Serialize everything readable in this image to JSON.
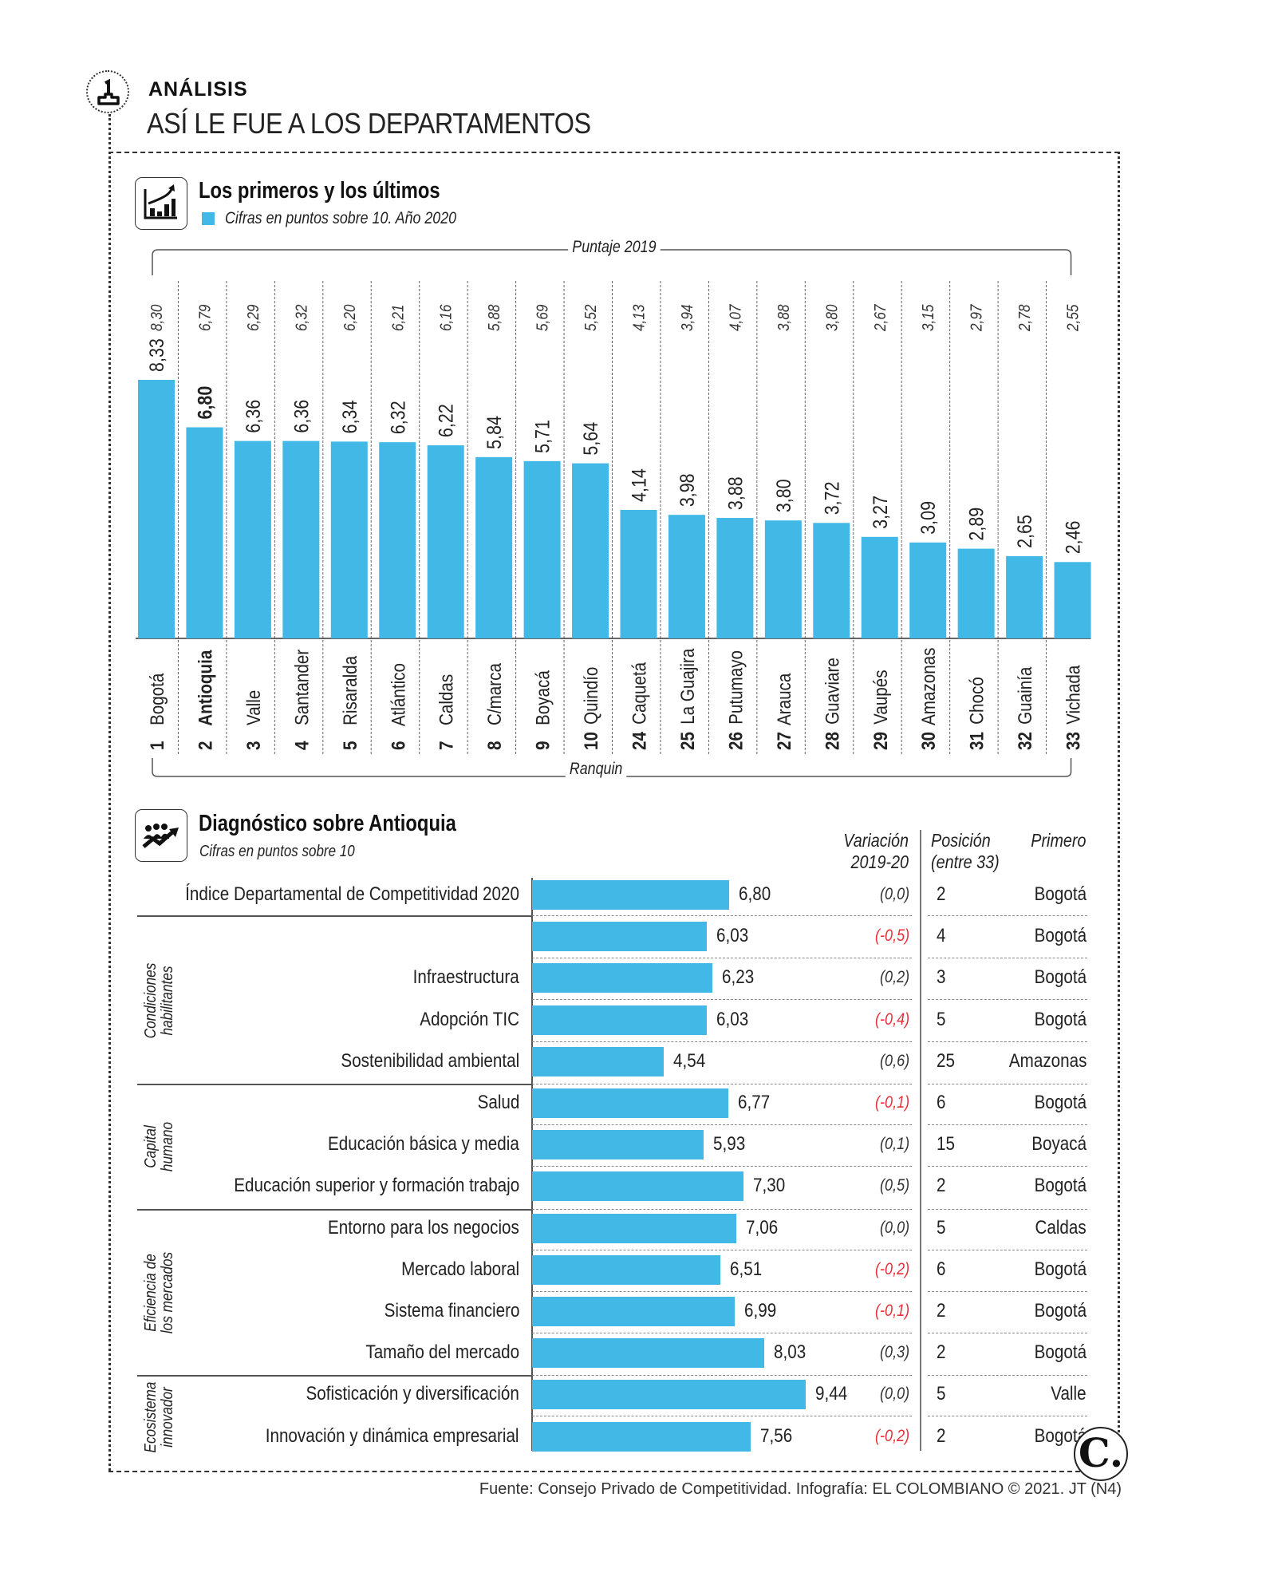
{
  "header": {
    "kicker": "ANÁLISIS",
    "title": "ASÍ LE FUE A LOS DEPARTAMENTOS",
    "icon": "podium-number-one-icon"
  },
  "section1": {
    "title": "Los primeros y los últimos",
    "legend": "Cifras en puntos sobre 10. Año 2020",
    "icon": "bar-chart-trend-icon",
    "top_bracket": "Puntaje 2019",
    "bottom_bracket": "Ranquin"
  },
  "section2": {
    "title": "Diagnóstico sobre Antioquia",
    "subtitle": "Cifras en puntos sobre 10",
    "icon": "people-growth-icon",
    "col_variation": [
      "Variación",
      "2019-20"
    ],
    "col_position": [
      "Posición",
      "(entre 33)"
    ],
    "col_first": "Primero"
  },
  "chart_data": [
    {
      "type": "bar",
      "title": "Los primeros y los últimos",
      "subtitle": "Cifras en puntos sobre 10. Año 2020",
      "categories": [
        "Bogotá",
        "Antioquia",
        "Valle",
        "Santander",
        "Risaralda",
        "Atlántico",
        "Caldas",
        "C/marca",
        "Boyacá",
        "Quindío",
        "Caquetá",
        "La Guajira",
        "Putumayo",
        "Arauca",
        "Guaviare",
        "Vaupés",
        "Amazonas",
        "Chocó",
        "Guainía",
        "Vichada"
      ],
      "ranks": [
        "1",
        "2",
        "3",
        "4",
        "5",
        "6",
        "7",
        "8",
        "9",
        "10",
        "24",
        "25",
        "26",
        "27",
        "28",
        "29",
        "30",
        "31",
        "32",
        "33"
      ],
      "series": [
        {
          "name": "2020",
          "values": [
            "8,33",
            "6,80",
            "6,36",
            "6,36",
            "6,34",
            "6,32",
            "6,22",
            "5,84",
            "5,71",
            "5,64",
            "4,14",
            "3,98",
            "3,88",
            "3,80",
            "3,72",
            "3,27",
            "3,09",
            "2,89",
            "2,65",
            "2,46"
          ],
          "color": "#41b8e6"
        },
        {
          "name": "Puntaje 2019",
          "values": [
            "8,30",
            "6,79",
            "6,29",
            "6,32",
            "6,20",
            "6,21",
            "6,16",
            "5,88",
            "5,69",
            "5,52",
            "4,13",
            "3,94",
            "4,07",
            "3,88",
            "3,80",
            "2,67",
            "3,15",
            "2,97",
            "2,78",
            "2,55"
          ]
        }
      ],
      "highlight": "Antioquia",
      "xlabel": "Ranquin",
      "ylabel": "",
      "ylim": [
        0,
        10
      ],
      "grid": false,
      "legend": "top-left"
    },
    {
      "type": "bar",
      "orientation": "horizontal",
      "title": "Diagnóstico sobre Antioquia",
      "subtitle": "Cifras en puntos sobre 10",
      "xlim": [
        0,
        10
      ],
      "rows": [
        {
          "group": "",
          "label": "Índice Departamental de Competitividad 2020",
          "value": "6,80",
          "variation": "(0,0)",
          "negative": false,
          "position": "2",
          "first": "Bogotá"
        },
        {
          "group": "Condiciones habilitantes",
          "label": "",
          "value": "6,03",
          "variation": "(-0,5)",
          "negative": true,
          "position": "4",
          "first": "Bogotá"
        },
        {
          "group": "Condiciones habilitantes",
          "label": "Infraestructura",
          "value": "6,23",
          "variation": "(0,2)",
          "negative": false,
          "position": "3",
          "first": "Bogotá"
        },
        {
          "group": "Condiciones habilitantes",
          "label": "Adopción TIC",
          "value": "6,03",
          "variation": "(-0,4)",
          "negative": true,
          "position": "5",
          "first": "Bogotá"
        },
        {
          "group": "Condiciones habilitantes",
          "label": "Sostenibilidad ambiental",
          "value": "4,54",
          "variation": "(0,6)",
          "negative": false,
          "position": "25",
          "first": "Amazonas"
        },
        {
          "group": "Capital humano",
          "label": "Salud",
          "value": "6,77",
          "variation": "(-0,1)",
          "negative": true,
          "position": "6",
          "first": "Bogotá"
        },
        {
          "group": "Capital humano",
          "label": "Educación básica y media",
          "value": "5,93",
          "variation": "(0,1)",
          "negative": false,
          "position": "15",
          "first": "Boyacá"
        },
        {
          "group": "Capital humano",
          "label": "Educación superior y formación trabajo",
          "value": "7,30",
          "variation": "(0,5)",
          "negative": false,
          "position": "2",
          "first": "Bogotá"
        },
        {
          "group": "Eficiencia de los mercados",
          "label": "Entorno para los negocios",
          "value": "7,06",
          "variation": "(0,0)",
          "negative": false,
          "position": "5",
          "first": "Caldas"
        },
        {
          "group": "Eficiencia de los mercados",
          "label": "Mercado laboral",
          "value": "6,51",
          "variation": "(-0,2)",
          "negative": true,
          "position": "6",
          "first": "Bogotá"
        },
        {
          "group": "Eficiencia de los mercados",
          "label": "Sistema financiero",
          "value": "6,99",
          "variation": "(-0,1)",
          "negative": true,
          "position": "2",
          "first": "Bogotá"
        },
        {
          "group": "Eficiencia de los mercados",
          "label": "Tamaño del mercado",
          "value": "8,03",
          "variation": "(0,3)",
          "negative": false,
          "position": "2",
          "first": "Bogotá"
        },
        {
          "group": "Ecosistema innovador",
          "label": "Sofisticación y diversificación",
          "value": "9,44",
          "variation": "(0,0)",
          "negative": false,
          "position": "5",
          "first": "Valle"
        },
        {
          "group": "Ecosistema innovador",
          "label": "Innovación y dinámica empresarial",
          "value": "7,56",
          "variation": "(-0,2)",
          "negative": true,
          "position": "2",
          "first": "Bogotá"
        }
      ],
      "groups": [
        {
          "name": "Condiciones habilitantes",
          "lines": [
            "Condiciones",
            "habilitantes"
          ]
        },
        {
          "name": "Capital humano",
          "lines": [
            "Capital",
            "humano"
          ]
        },
        {
          "name": "Eficiencia de los mercados",
          "lines": [
            "Eficiencia de",
            "los mercados"
          ]
        },
        {
          "name": "Ecosistema innovador",
          "lines": [
            "Ecosistema",
            "innovador"
          ]
        }
      ]
    }
  ],
  "colors": {
    "bar": "#41b8e6",
    "negative": "#e8303a",
    "text": "#222222"
  },
  "footer": {
    "source": "Fuente: Consejo Privado de Competitividad. Infografía: EL COLOMBIANO © 2021. JT (N4)",
    "logo_letter": "C.",
    "logo_icon": "el-colombiano-logo-icon"
  }
}
